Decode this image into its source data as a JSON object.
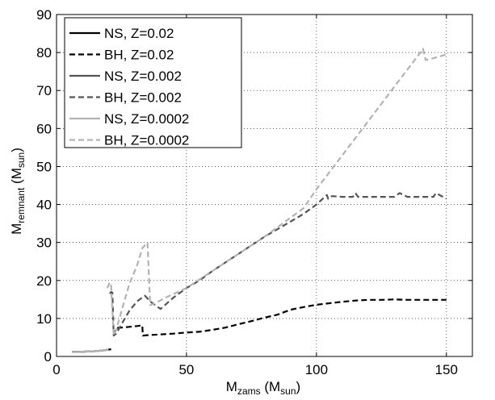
{
  "chart_data": {
    "type": "line",
    "xlabel": {
      "main": "M",
      "sub": "zams",
      "unit_open": " (M",
      "unit_sub": "sun",
      "unit_close": ")"
    },
    "ylabel": {
      "main": "M",
      "sub": "remnant",
      "unit_open": " (M",
      "unit_sub": "sun",
      "unit_close": ")"
    },
    "xlim": [
      0,
      160
    ],
    "ylim": [
      0,
      90
    ],
    "xticks": [
      0,
      50,
      100,
      150
    ],
    "yticks": [
      0,
      10,
      20,
      30,
      40,
      50,
      60,
      70,
      80,
      90
    ],
    "grid": true,
    "legend_position": "top-left",
    "series": [
      {
        "name": "NS, Z=0.02",
        "color": "#000000",
        "dash": "solid",
        "x": [
          6,
          8,
          10,
          12,
          14,
          16,
          18,
          20,
          21
        ],
        "y": [
          1.2,
          1.2,
          1.25,
          1.3,
          1.35,
          1.45,
          1.6,
          1.8,
          1.9
        ]
      },
      {
        "name": "BH, Z=0.02",
        "color": "#000000",
        "dash": "dashed",
        "x": [
          22,
          23,
          25,
          28,
          31,
          33,
          33.2,
          35,
          40,
          45,
          50,
          55,
          60,
          65,
          70,
          75,
          80,
          85,
          90,
          95,
          100,
          105,
          110,
          115,
          120,
          125,
          130,
          135,
          140,
          145,
          150
        ],
        "y": [
          5.5,
          7.5,
          7.6,
          7.8,
          8.0,
          8.2,
          5.5,
          5.6,
          5.8,
          6.0,
          6.3,
          6.5,
          7.0,
          7.6,
          8.5,
          9.3,
          10.2,
          11.0,
          12.3,
          13.0,
          13.6,
          14.0,
          14.4,
          14.7,
          14.9,
          14.9,
          15.0,
          14.9,
          14.9,
          14.9,
          14.9
        ]
      },
      {
        "name": "NS, Z=0.002",
        "color": "#555555",
        "dash": "solid",
        "x": [
          6,
          8,
          10,
          12,
          14,
          16,
          18,
          20
        ],
        "y": [
          1.2,
          1.2,
          1.25,
          1.3,
          1.35,
          1.45,
          1.6,
          1.8
        ]
      },
      {
        "name": "BH, Z=0.002",
        "color": "#555555",
        "dash": "dashed",
        "x": [
          20.5,
          21,
          21.5,
          22,
          23,
          25,
          28,
          31,
          34,
          36,
          40,
          45,
          50,
          55,
          60,
          70,
          80,
          90,
          95,
          100,
          104,
          104.5,
          106,
          110,
          114,
          115,
          116,
          120,
          125,
          130,
          132,
          135,
          140,
          145,
          146,
          150
        ],
        "y": [
          16.5,
          17.0,
          16.8,
          5.5,
          6.0,
          8.5,
          12.0,
          14.5,
          16.0,
          14.5,
          12.5,
          15.5,
          18.0,
          20.0,
          22.5,
          27.0,
          31.5,
          35.5,
          37.5,
          40.0,
          42.5,
          41.5,
          42.2,
          42.0,
          42.0,
          43.0,
          42.0,
          42.0,
          42.0,
          42.0,
          43.0,
          42.0,
          42.0,
          42.0,
          43.0,
          41.5
        ]
      },
      {
        "name": "NS, Z=0.0002",
        "color": "#b3b3b3",
        "dash": "solid",
        "x": [
          6,
          8,
          10,
          12,
          14,
          16,
          18,
          20
        ],
        "y": [
          1.2,
          1.2,
          1.25,
          1.3,
          1.35,
          1.45,
          1.6,
          1.8
        ]
      },
      {
        "name": "BH, Z=0.0002",
        "color": "#b3b3b3",
        "dash": "dashed",
        "x": [
          19.5,
          20.5,
          21,
          22,
          23,
          25,
          28,
          31,
          33,
          35,
          36,
          38,
          42,
          50,
          60,
          70,
          80,
          90,
          95,
          100,
          110,
          120,
          130,
          140,
          141,
          142,
          145,
          150
        ],
        "y": [
          18.0,
          19.5,
          18.5,
          5.5,
          7.0,
          12.0,
          19.0,
          24.0,
          28.5,
          30.0,
          13.5,
          14.0,
          15.5,
          18.0,
          22.5,
          27.0,
          31.5,
          36.5,
          39.0,
          44.0,
          53.0,
          62.0,
          71.0,
          80.0,
          81.0,
          78.0,
          78.5,
          79.5
        ]
      }
    ]
  }
}
